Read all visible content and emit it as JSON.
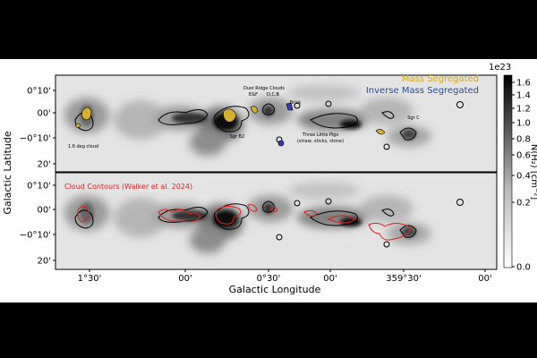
{
  "figure": {
    "colorbar": {
      "exponent": "1e23",
      "label": "N(H₂) [cm⁻²]",
      "ticks": [
        "1.6",
        "1.4",
        "1.2",
        "1.0",
        "0.8",
        "0.6",
        "0.4",
        "0.2",
        "0.0"
      ]
    },
    "y_axis_label": "Galactic Latitude",
    "x_axis_label": "Galactic Longitude",
    "x_ticks": [
      "1°30'",
      "00'",
      "0°30'",
      "00'",
      "359°30'",
      "00'"
    ],
    "top_panel": {
      "y_ticks": [
        "0°10'",
        "00'",
        "−0°10'",
        "20'"
      ],
      "legend": [
        "Mass Segregated",
        "Inverse Mass Segregated"
      ],
      "annotations": [
        "Dust Ridge Clouds",
        "E&F",
        "D,C,B",
        "Brick",
        "Sgr B2",
        "1.6 deg cloud",
        "Three Little Pigs",
        "(straw, sticks, stone)",
        "Sgr C"
      ]
    },
    "bottom_panel": {
      "y_ticks": [
        "0°10'",
        "00'",
        "−0°10'",
        "20'"
      ],
      "annotation": "Cloud Contours (Walker et al. 2024)"
    }
  }
}
